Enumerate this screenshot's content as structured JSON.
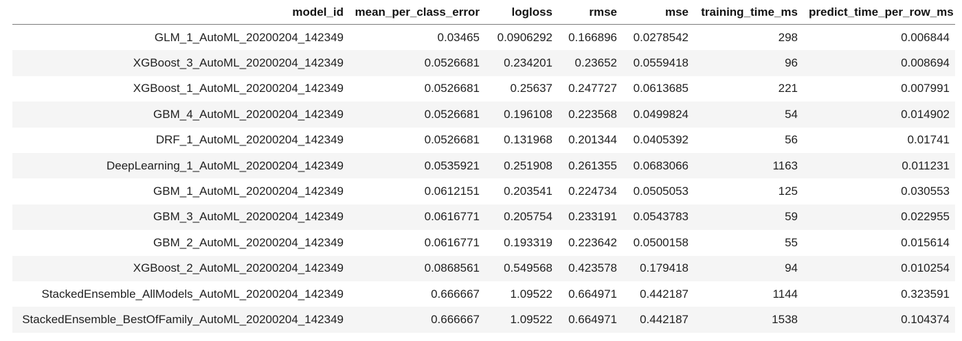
{
  "table": {
    "columns": [
      "model_id",
      "mean_per_class_error",
      "logloss",
      "rmse",
      "mse",
      "training_time_ms",
      "predict_time_per_row_ms"
    ],
    "rows": [
      [
        "GLM_1_AutoML_20200204_142349",
        "0.03465",
        "0.0906292",
        "0.166896",
        "0.0278542",
        "298",
        "0.006844"
      ],
      [
        "XGBoost_3_AutoML_20200204_142349",
        "0.0526681",
        "0.234201",
        "0.23652",
        "0.0559418",
        "96",
        "0.008694"
      ],
      [
        "XGBoost_1_AutoML_20200204_142349",
        "0.0526681",
        "0.25637",
        "0.247727",
        "0.0613685",
        "221",
        "0.007991"
      ],
      [
        "GBM_4_AutoML_20200204_142349",
        "0.0526681",
        "0.196108",
        "0.223568",
        "0.0499824",
        "54",
        "0.014902"
      ],
      [
        "DRF_1_AutoML_20200204_142349",
        "0.0526681",
        "0.131968",
        "0.201344",
        "0.0405392",
        "56",
        "0.01741"
      ],
      [
        "DeepLearning_1_AutoML_20200204_142349",
        "0.0535921",
        "0.251908",
        "0.261355",
        "0.0683066",
        "1163",
        "0.011231"
      ],
      [
        "GBM_1_AutoML_20200204_142349",
        "0.0612151",
        "0.203541",
        "0.224734",
        "0.0505053",
        "125",
        "0.030553"
      ],
      [
        "GBM_3_AutoML_20200204_142349",
        "0.0616771",
        "0.205754",
        "0.233191",
        "0.0543783",
        "59",
        "0.022955"
      ],
      [
        "GBM_2_AutoML_20200204_142349",
        "0.0616771",
        "0.193319",
        "0.223642",
        "0.0500158",
        "55",
        "0.015614"
      ],
      [
        "XGBoost_2_AutoML_20200204_142349",
        "0.0868561",
        "0.549568",
        "0.423578",
        "0.179418",
        "94",
        "0.010254"
      ],
      [
        "StackedEnsemble_AllModels_AutoML_20200204_142349",
        "0.666667",
        "1.09522",
        "0.664971",
        "0.442187",
        "1144",
        "0.323591"
      ],
      [
        "StackedEnsemble_BestOfFamily_AutoML_20200204_142349",
        "0.666667",
        "1.09522",
        "0.664971",
        "0.442187",
        "1538",
        "0.104374"
      ]
    ]
  }
}
